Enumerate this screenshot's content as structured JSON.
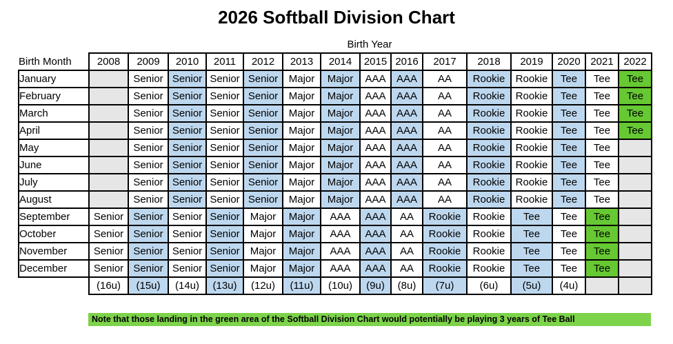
{
  "title": "2026 Softball Division Chart",
  "subtitle": "Birth Year",
  "note": "Note that those landing in the green area of the Softball Division Chart would potentially be playing 3 years of Tee Ball",
  "colors": {
    "band_blue": "#BDD7EE",
    "empty_gray": "#E7E6E6",
    "tee_green": "#66C832",
    "note_green": "#7DD34A",
    "border_black": "#000000"
  },
  "chart_data": {
    "type": "table",
    "title": "2026 Softball Division Chart",
    "columns_group_label": "Birth Year",
    "row_header_label": "Birth Month",
    "columns": [
      "2008",
      "2009",
      "2010",
      "2011",
      "2012",
      "2013",
      "2014",
      "2015",
      "2016",
      "2017",
      "2018",
      "2019",
      "2020",
      "2021",
      "2022"
    ],
    "rows": [
      {
        "label": "January",
        "values": [
          "",
          "Senior",
          "Senior",
          "Senior",
          "Senior",
          "Major",
          "Major",
          "AAA",
          "AAA",
          "AA",
          "Rookie",
          "Rookie",
          "Tee",
          "Tee",
          "Tee"
        ],
        "bgs": [
          "gray",
          "white",
          "blue",
          "white",
          "blue",
          "white",
          "blue",
          "white",
          "blue",
          "white",
          "blue",
          "white",
          "blue",
          "white",
          "green"
        ]
      },
      {
        "label": "February",
        "values": [
          "",
          "Senior",
          "Senior",
          "Senior",
          "Senior",
          "Major",
          "Major",
          "AAA",
          "AAA",
          "AA",
          "Rookie",
          "Rookie",
          "Tee",
          "Tee",
          "Tee"
        ],
        "bgs": [
          "gray",
          "white",
          "blue",
          "white",
          "blue",
          "white",
          "blue",
          "white",
          "blue",
          "white",
          "blue",
          "white",
          "blue",
          "white",
          "green"
        ]
      },
      {
        "label": "March",
        "values": [
          "",
          "Senior",
          "Senior",
          "Senior",
          "Senior",
          "Major",
          "Major",
          "AAA",
          "AAA",
          "AA",
          "Rookie",
          "Rookie",
          "Tee",
          "Tee",
          "Tee"
        ],
        "bgs": [
          "gray",
          "white",
          "blue",
          "white",
          "blue",
          "white",
          "blue",
          "white",
          "blue",
          "white",
          "blue",
          "white",
          "blue",
          "white",
          "green"
        ]
      },
      {
        "label": "April",
        "values": [
          "",
          "Senior",
          "Senior",
          "Senior",
          "Senior",
          "Major",
          "Major",
          "AAA",
          "AAA",
          "AA",
          "Rookie",
          "Rookie",
          "Tee",
          "Tee",
          "Tee"
        ],
        "bgs": [
          "gray",
          "white",
          "blue",
          "white",
          "blue",
          "white",
          "blue",
          "white",
          "blue",
          "white",
          "blue",
          "white",
          "blue",
          "white",
          "green"
        ]
      },
      {
        "label": "May",
        "values": [
          "",
          "Senior",
          "Senior",
          "Senior",
          "Senior",
          "Major",
          "Major",
          "AAA",
          "AAA",
          "AA",
          "Rookie",
          "Rookie",
          "Tee",
          "Tee",
          ""
        ],
        "bgs": [
          "gray",
          "white",
          "blue",
          "white",
          "blue",
          "white",
          "blue",
          "white",
          "blue",
          "white",
          "blue",
          "white",
          "blue",
          "white",
          "gray"
        ]
      },
      {
        "label": "June",
        "values": [
          "",
          "Senior",
          "Senior",
          "Senior",
          "Senior",
          "Major",
          "Major",
          "AAA",
          "AAA",
          "AA",
          "Rookie",
          "Rookie",
          "Tee",
          "Tee",
          ""
        ],
        "bgs": [
          "gray",
          "white",
          "blue",
          "white",
          "blue",
          "white",
          "blue",
          "white",
          "blue",
          "white",
          "blue",
          "white",
          "blue",
          "white",
          "gray"
        ]
      },
      {
        "label": "July",
        "values": [
          "",
          "Senior",
          "Senior",
          "Senior",
          "Senior",
          "Major",
          "Major",
          "AAA",
          "AAA",
          "AA",
          "Rookie",
          "Rookie",
          "Tee",
          "Tee",
          ""
        ],
        "bgs": [
          "gray",
          "white",
          "blue",
          "white",
          "blue",
          "white",
          "blue",
          "white",
          "blue",
          "white",
          "blue",
          "white",
          "blue",
          "white",
          "gray"
        ]
      },
      {
        "label": "August",
        "values": [
          "",
          "Senior",
          "Senior",
          "Senior",
          "Senior",
          "Major",
          "Major",
          "AAA",
          "AAA",
          "AA",
          "Rookie",
          "Rookie",
          "Tee",
          "Tee",
          ""
        ],
        "bgs": [
          "gray",
          "white",
          "blue",
          "white",
          "blue",
          "white",
          "blue",
          "white",
          "blue",
          "white",
          "blue",
          "white",
          "blue",
          "white",
          "gray"
        ]
      },
      {
        "label": "September",
        "values": [
          "Senior",
          "Senior",
          "Senior",
          "Senior",
          "Major",
          "Major",
          "AAA",
          "AAA",
          "AA",
          "Rookie",
          "Rookie",
          "Tee",
          "Tee",
          "Tee",
          ""
        ],
        "bgs": [
          "white",
          "blue",
          "white",
          "blue",
          "white",
          "blue",
          "white",
          "blue",
          "white",
          "blue",
          "white",
          "blue",
          "white",
          "green",
          "gray"
        ]
      },
      {
        "label": "October",
        "values": [
          "Senior",
          "Senior",
          "Senior",
          "Senior",
          "Major",
          "Major",
          "AAA",
          "AAA",
          "AA",
          "Rookie",
          "Rookie",
          "Tee",
          "Tee",
          "Tee",
          ""
        ],
        "bgs": [
          "white",
          "blue",
          "white",
          "blue",
          "white",
          "blue",
          "white",
          "blue",
          "white",
          "blue",
          "white",
          "blue",
          "white",
          "green",
          "gray"
        ]
      },
      {
        "label": "November",
        "values": [
          "Senior",
          "Senior",
          "Senior",
          "Senior",
          "Major",
          "Major",
          "AAA",
          "AAA",
          "AA",
          "Rookie",
          "Rookie",
          "Tee",
          "Tee",
          "Tee",
          ""
        ],
        "bgs": [
          "white",
          "blue",
          "white",
          "blue",
          "white",
          "blue",
          "white",
          "blue",
          "white",
          "blue",
          "white",
          "blue",
          "white",
          "green",
          "gray"
        ]
      },
      {
        "label": "December",
        "values": [
          "Senior",
          "Senior",
          "Senior",
          "Senior",
          "Major",
          "Major",
          "AAA",
          "AAA",
          "AA",
          "Rookie",
          "Rookie",
          "Tee",
          "Tee",
          "Tee",
          ""
        ],
        "bgs": [
          "white",
          "blue",
          "white",
          "blue",
          "white",
          "blue",
          "white",
          "blue",
          "white",
          "blue",
          "white",
          "blue",
          "white",
          "green",
          "gray"
        ]
      }
    ],
    "age_band_row": {
      "label": "",
      "values": [
        "(16u)",
        "(15u)",
        "(14u)",
        "(13u)",
        "(12u)",
        "(11u)",
        "(10u)",
        "(9u)",
        "(8u)",
        "(7u)",
        "(6u)",
        "(5u)",
        "(4u)",
        "",
        ""
      ],
      "bgs": [
        "white",
        "blue",
        "white",
        "blue",
        "white",
        "blue",
        "white",
        "blue",
        "white",
        "blue",
        "white",
        "blue",
        "white",
        "gray",
        "gray"
      ]
    },
    "note": "Note that those landing in the green area of the Softball Division Chart would potentially be playing 3 years of Tee Ball"
  }
}
